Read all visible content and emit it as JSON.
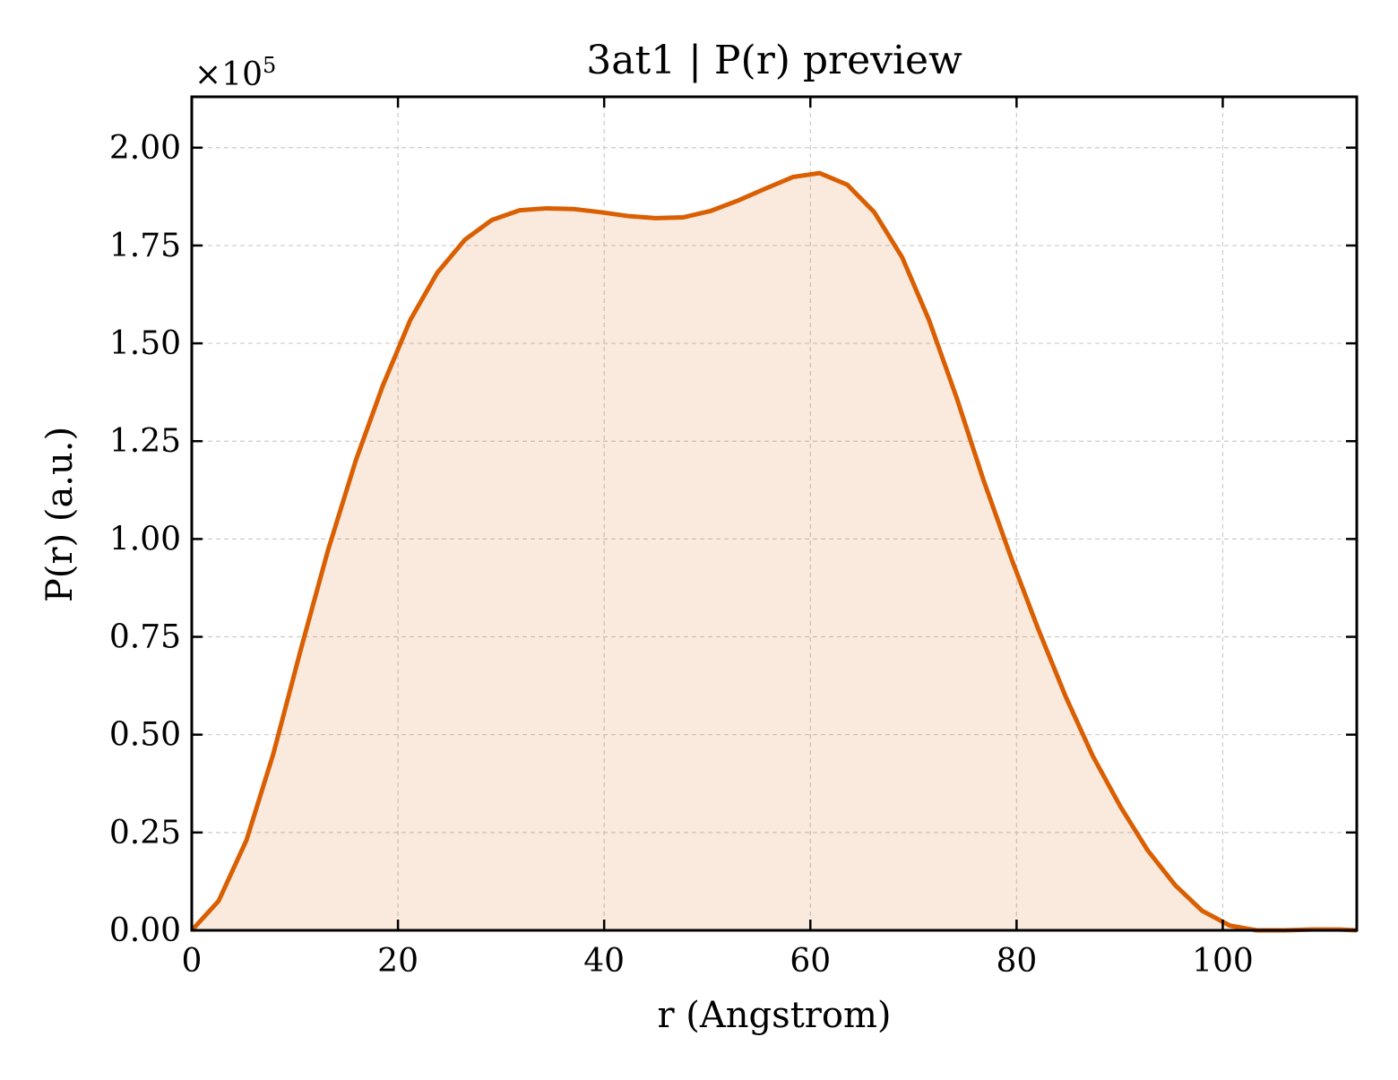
{
  "chart_data": {
    "type": "area",
    "title": "3at1 | P(r) preview",
    "xlabel": "r (Angstrom)",
    "ylabel": "P(r) (a.u.)",
    "y_offset_label": "×10",
    "y_offset_exponent": "5",
    "xlim": [
      0,
      113
    ],
    "ylim": [
      0,
      2.13
    ],
    "y_scale_factor": 100000,
    "grid": true,
    "x_ticks": [
      0,
      20,
      40,
      60,
      80,
      100
    ],
    "x_tick_labels": [
      "0",
      "20",
      "40",
      "60",
      "80",
      "100"
    ],
    "y_ticks": [
      0,
      0.25,
      0.5,
      0.75,
      1.0,
      1.25,
      1.5,
      1.75,
      2.0
    ],
    "y_tick_labels": [
      "0.00",
      "0.25",
      "0.50",
      "0.75",
      "1.00",
      "1.25",
      "1.50",
      "1.75",
      "2.00"
    ],
    "series": [
      {
        "x": [
          0,
          2.6,
          5.3,
          7.9,
          10.6,
          13.2,
          15.9,
          18.5,
          21.2,
          23.8,
          26.5,
          29.1,
          31.8,
          34.4,
          37.1,
          39.7,
          42.4,
          45.0,
          47.7,
          50.3,
          53.0,
          55.6,
          58.3,
          60.9,
          63.6,
          66.2,
          68.9,
          71.5,
          74.2,
          76.8,
          79.5,
          82.1,
          84.8,
          87.4,
          90.1,
          92.7,
          95.4,
          98.0,
          100.7,
          103.3,
          106.0,
          108.6,
          111.3,
          113.0
        ],
        "y": [
          0.0,
          0.075,
          0.23,
          0.45,
          0.72,
          0.97,
          1.2,
          1.39,
          1.56,
          1.68,
          1.765,
          1.815,
          1.84,
          1.845,
          1.843,
          1.835,
          1.825,
          1.82,
          1.822,
          1.838,
          1.865,
          1.895,
          1.925,
          1.935,
          1.905,
          1.835,
          1.72,
          1.56,
          1.36,
          1.15,
          0.95,
          0.77,
          0.595,
          0.445,
          0.315,
          0.205,
          0.115,
          0.05,
          0.012,
          0.0,
          0.0,
          0.002,
          0.002,
          0.0
        ],
        "color": "#D95F02",
        "fill_color": "#D95F02",
        "fill_opacity": 0.13
      }
    ]
  }
}
